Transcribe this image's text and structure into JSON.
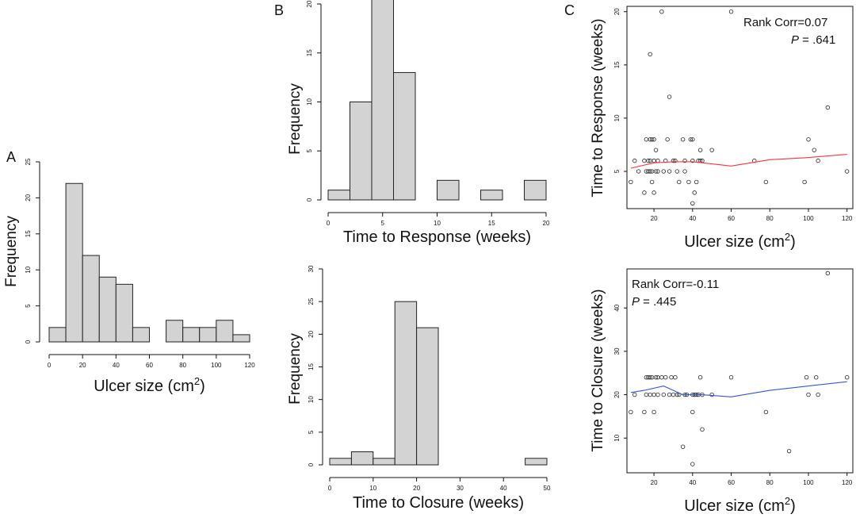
{
  "chart_data": [
    {
      "panel": "A",
      "type": "bar",
      "subtype": "histogram",
      "title": "",
      "xlabel": "Ulcer size (cm",
      "xlabel_sup": "2",
      "xlabel_end": ")",
      "ylabel": "Frequency",
      "bin_edges": [
        0,
        10,
        20,
        30,
        40,
        50,
        60,
        70,
        80,
        90,
        100,
        110,
        120
      ],
      "values": [
        2,
        22,
        12,
        9,
        8,
        2,
        0,
        3,
        2,
        2,
        3,
        1
      ],
      "xlim": [
        0,
        120
      ],
      "ylim": [
        0,
        25
      ],
      "xticks": [
        0,
        20,
        40,
        60,
        80,
        100,
        120
      ],
      "yticks": [
        0,
        5,
        10,
        15,
        20,
        25
      ]
    },
    {
      "panel": "B",
      "type": "bar",
      "subtype": "histogram",
      "title": "",
      "xlabel": "Time to Response (weeks)",
      "ylabel": "Frequency",
      "bin_edges": [
        0,
        2,
        4,
        6,
        8,
        10,
        12,
        14,
        16,
        18,
        20
      ],
      "values": [
        1,
        10,
        21,
        13,
        0,
        2,
        0,
        1,
        0,
        2
      ],
      "xlim": [
        0,
        20
      ],
      "ylim": [
        0,
        20
      ],
      "xticks": [
        0,
        5,
        10,
        15,
        20
      ],
      "yticks": [
        0,
        5,
        10,
        15,
        20
      ]
    },
    {
      "panel": "B2",
      "type": "bar",
      "subtype": "histogram",
      "title": "",
      "xlabel": "Time to Closure (weeks)",
      "ylabel": "Frequency",
      "bin_edges": [
        0,
        5,
        10,
        15,
        20,
        25,
        30,
        35,
        40,
        45,
        50
      ],
      "values": [
        1,
        2,
        1,
        25,
        21,
        0,
        0,
        0,
        0,
        1
      ],
      "xlim": [
        0,
        50
      ],
      "ylim": [
        0,
        30
      ],
      "xticks": [
        0,
        10,
        20,
        30,
        40,
        50
      ],
      "yticks": [
        0,
        5,
        10,
        15,
        20,
        25,
        30
      ]
    },
    {
      "panel": "C",
      "type": "scatter",
      "title": "",
      "xlabel": "Ulcer size (cm",
      "xlabel_sup": "2",
      "xlabel_end": ")",
      "ylabel": "Time to Response (weeks)",
      "stat_label": "Rank Corr=0.07",
      "p_label": "P",
      "p_value": " = .641",
      "smooth_color": "#ff3333",
      "xlim": [
        6,
        123
      ],
      "ylim": [
        1.5,
        20.5
      ],
      "xticks": [
        20,
        40,
        60,
        80,
        100,
        120
      ],
      "yticks": [
        5,
        10,
        15,
        20
      ],
      "points": [
        [
          8,
          4
        ],
        [
          10,
          6
        ],
        [
          12,
          5
        ],
        [
          15,
          3
        ],
        [
          15,
          6
        ],
        [
          16,
          8
        ],
        [
          16,
          5
        ],
        [
          17,
          6
        ],
        [
          17,
          5
        ],
        [
          18,
          8
        ],
        [
          18,
          16
        ],
        [
          18,
          5
        ],
        [
          18,
          6
        ],
        [
          19,
          5
        ],
        [
          19,
          4
        ],
        [
          19,
          8
        ],
        [
          20,
          8
        ],
        [
          20,
          3
        ],
        [
          20,
          6
        ],
        [
          21,
          7
        ],
        [
          21,
          5
        ],
        [
          22,
          5
        ],
        [
          22,
          6
        ],
        [
          24,
          20
        ],
        [
          25,
          5
        ],
        [
          26,
          6
        ],
        [
          27,
          8
        ],
        [
          28,
          12
        ],
        [
          28,
          5
        ],
        [
          30,
          6
        ],
        [
          31,
          6
        ],
        [
          32,
          5
        ],
        [
          33,
          4
        ],
        [
          35,
          8
        ],
        [
          36,
          6
        ],
        [
          36,
          5
        ],
        [
          38,
          4
        ],
        [
          39,
          8
        ],
        [
          40,
          2
        ],
        [
          40,
          6
        ],
        [
          40,
          8
        ],
        [
          41,
          3
        ],
        [
          42,
          4
        ],
        [
          43,
          6
        ],
        [
          44,
          7
        ],
        [
          44,
          6
        ],
        [
          45,
          6
        ],
        [
          50,
          7
        ],
        [
          60,
          20
        ],
        [
          72,
          6
        ],
        [
          78,
          4
        ],
        [
          98,
          4
        ],
        [
          100,
          8
        ],
        [
          103,
          7
        ],
        [
          105,
          6
        ],
        [
          110,
          11
        ],
        [
          120,
          5
        ]
      ],
      "smooth": [
        [
          8,
          5.3
        ],
        [
          20,
          5.8
        ],
        [
          30,
          5.9
        ],
        [
          40,
          5.9
        ],
        [
          50,
          5.7
        ],
        [
          60,
          5.5
        ],
        [
          70,
          5.8
        ],
        [
          80,
          6.1
        ],
        [
          100,
          6.3
        ],
        [
          120,
          6.6
        ]
      ]
    },
    {
      "panel": "C2",
      "type": "scatter",
      "title": "",
      "xlabel": "Ulcer size (cm",
      "xlabel_sup": "2",
      "xlabel_end": ")",
      "ylabel": "Time to Closure (weeks)",
      "stat_label": "Rank Corr=-0.11",
      "p_label": "P",
      "p_value": " = .445",
      "smooth_color": "#3355dd",
      "xlim": [
        6,
        123
      ],
      "ylim": [
        2,
        49
      ],
      "xticks": [
        20,
        40,
        60,
        80,
        100,
        120
      ],
      "yticks": [
        10,
        20,
        30,
        40
      ],
      "points": [
        [
          8,
          16
        ],
        [
          10,
          20
        ],
        [
          15,
          16
        ],
        [
          16,
          24
        ],
        [
          16,
          20
        ],
        [
          17,
          24
        ],
        [
          18,
          24
        ],
        [
          18,
          20
        ],
        [
          19,
          24
        ],
        [
          20,
          20
        ],
        [
          20,
          16
        ],
        [
          21,
          24
        ],
        [
          22,
          24
        ],
        [
          22,
          20
        ],
        [
          24,
          24
        ],
        [
          25,
          20
        ],
        [
          26,
          24
        ],
        [
          28,
          20
        ],
        [
          29,
          24
        ],
        [
          30,
          20
        ],
        [
          31,
          24
        ],
        [
          32,
          20
        ],
        [
          33,
          20
        ],
        [
          35,
          8
        ],
        [
          36,
          20
        ],
        [
          37,
          20
        ],
        [
          40,
          16
        ],
        [
          40,
          20
        ],
        [
          40,
          4
        ],
        [
          41,
          20
        ],
        [
          42,
          20
        ],
        [
          43,
          20
        ],
        [
          44,
          24
        ],
        [
          45,
          12
        ],
        [
          45,
          20
        ],
        [
          50,
          20
        ],
        [
          60,
          24
        ],
        [
          78,
          16
        ],
        [
          90,
          7
        ],
        [
          99,
          24
        ],
        [
          100,
          20
        ],
        [
          104,
          24
        ],
        [
          105,
          20
        ],
        [
          110,
          48
        ],
        [
          120,
          24
        ]
      ],
      "smooth": [
        [
          8,
          20.5
        ],
        [
          15,
          21
        ],
        [
          25,
          22
        ],
        [
          35,
          20
        ],
        [
          45,
          20
        ],
        [
          60,
          19.5
        ],
        [
          80,
          21
        ],
        [
          100,
          22
        ],
        [
          120,
          23
        ]
      ]
    }
  ],
  "labels": {
    "panel_a": "A",
    "panel_b": "B",
    "panel_c": "C"
  }
}
